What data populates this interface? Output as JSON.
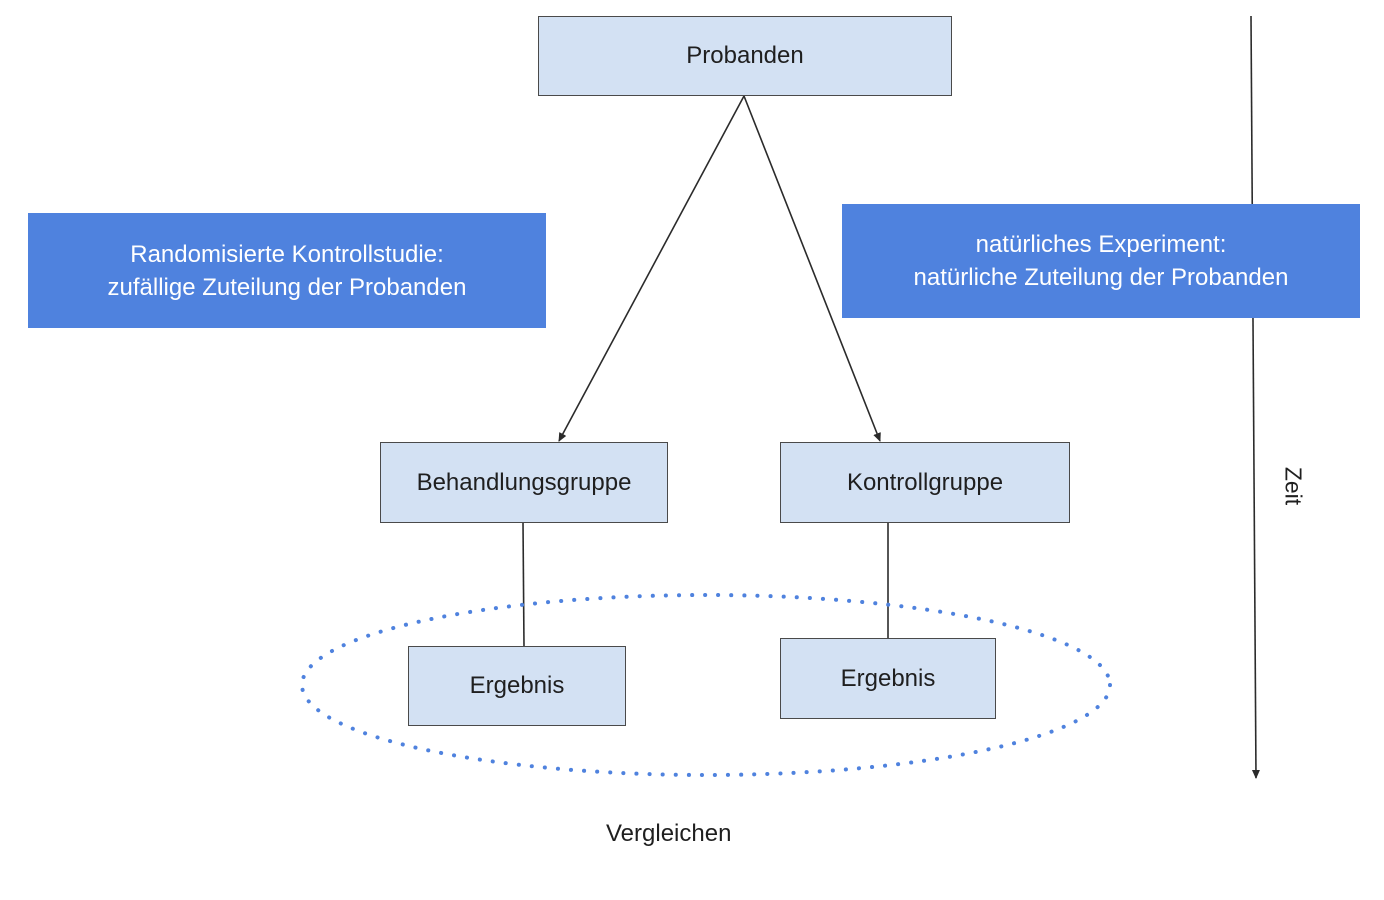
{
  "diagram": {
    "root": {
      "label": "Probanden"
    },
    "randomized_note": {
      "lines": [
        "Randomisierte Kontrollstudie:",
        "zufällige Zuteilung der Probanden"
      ]
    },
    "natural_note": {
      "lines": [
        "natürliches Experiment:",
        "natürliche Zuteilung der Probanden"
      ]
    },
    "treatment_group": {
      "label": "Behandlungsgruppe"
    },
    "control_group": {
      "label": "Kontrollgruppe"
    },
    "treatment_outcome": {
      "label": "Ergebnis"
    },
    "control_outcome": {
      "label": "Ergebnis"
    },
    "compare_label": "Vergleichen",
    "time_axis_label": "Zeit",
    "colors": {
      "node_fill": "#d3e1f3",
      "banner_fill": "#4f82de",
      "dotted_ellipse": "#4f82de",
      "lines": "#2b2b2b"
    }
  }
}
